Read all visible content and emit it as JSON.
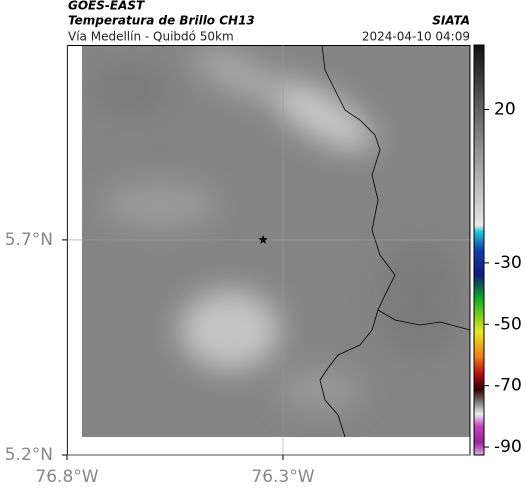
{
  "header": {
    "source": "GOES-EAST",
    "product": "Temperatura de Brillo CH13",
    "organization": "SIATA",
    "region": "Vía Medellín - Quibdó 50km",
    "timestamp": "2024-04-10 04:09"
  },
  "map": {
    "xlim": [
      -76.8,
      -75.867
    ],
    "ylim": [
      5.2,
      6.153
    ],
    "xticks": [
      {
        "value": -76.8,
        "label": "76.8°W"
      },
      {
        "value": -76.3,
        "label": "76.3°W"
      }
    ],
    "yticks": [
      {
        "value": 5.2,
        "label": "5.2°N"
      },
      {
        "value": 5.7,
        "label": "5.7°N"
      }
    ],
    "grid": true,
    "marker": {
      "lon": -76.346,
      "lat": 5.7
    }
  },
  "colorbar": {
    "lim": [
      -92.6,
      41
    ],
    "ticks": [
      20,
      -30,
      -50,
      -70,
      -90
    ]
  }
}
